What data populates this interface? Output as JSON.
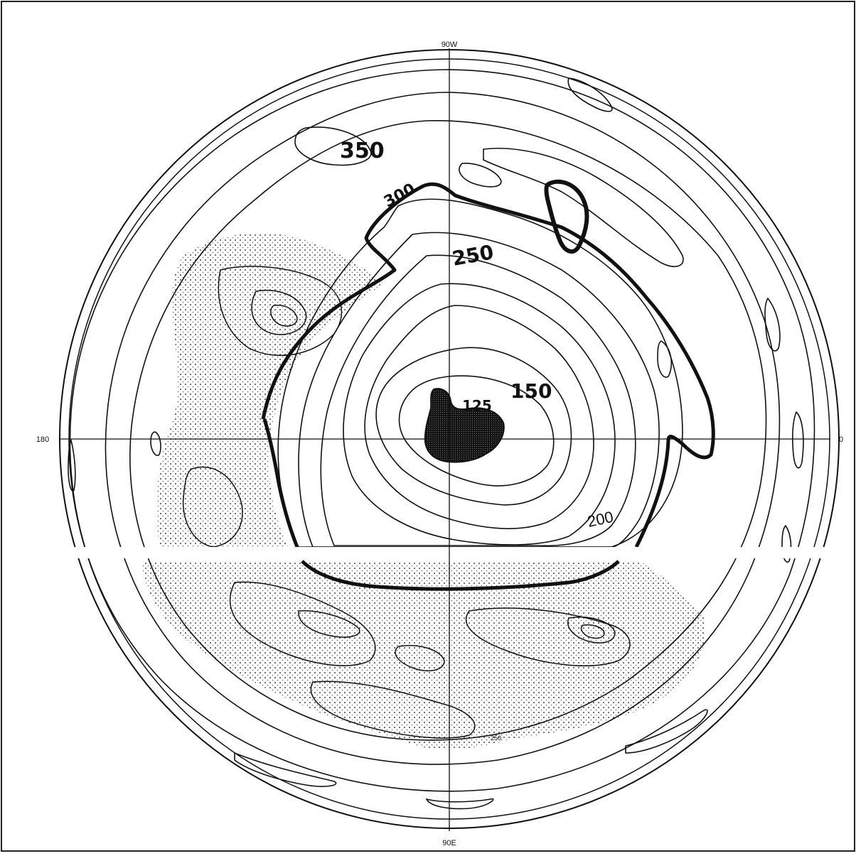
{
  "map": {
    "labels": {
      "top": "90W",
      "bottom": "90E",
      "left": "180",
      "right": "0"
    },
    "contour_labels": [
      {
        "text": "350"
      },
      {
        "text": "300"
      },
      {
        "text": "250"
      },
      {
        "text": "150"
      },
      {
        "text": "125"
      },
      {
        "text": "200"
      },
      {
        "text": "250"
      }
    ],
    "colors": {
      "ink": "#111111",
      "stipple": "#444444",
      "background": "#ffffff"
    }
  }
}
